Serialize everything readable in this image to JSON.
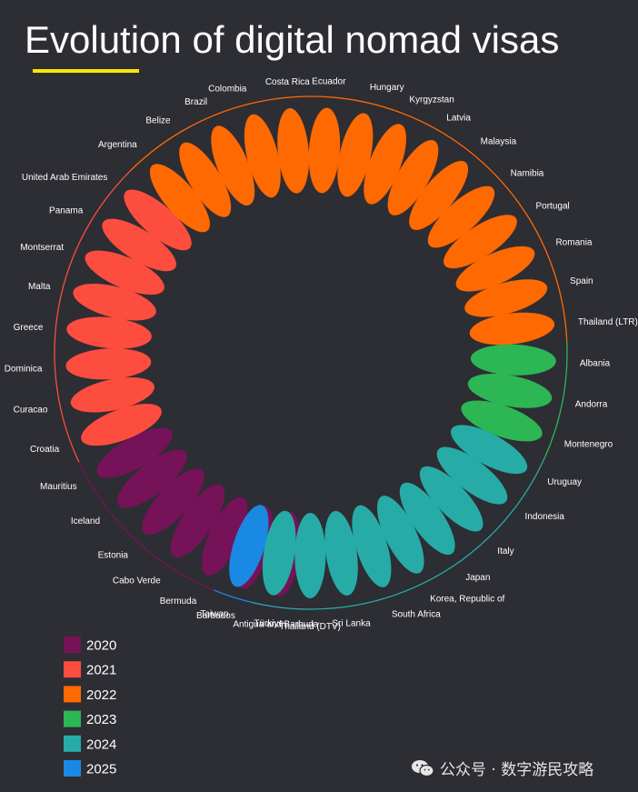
{
  "chart_data": {
    "type": "radial",
    "title": "Evolution of digital nomad visas",
    "categories": [
      "Antigua and Barbuda",
      "Barbados",
      "Bermuda",
      "Cabo Verde",
      "Estonia",
      "Iceland",
      "Mauritius",
      "Croatia",
      "Curacao",
      "Dominica",
      "Greece",
      "Malta",
      "Montserrat",
      "Panama",
      "United Arab Emirates",
      "Argentina",
      "Belize",
      "Brazil",
      "Colombia",
      "Costa Rica",
      "Ecuador",
      "Hungary",
      "Kyrgyzstan",
      "Latvia",
      "Malaysia",
      "Namibia",
      "Portugal",
      "Romania",
      "Spain",
      "Thailand (LTR)",
      "Albania",
      "Andorra",
      "Montenegro",
      "Uruguay",
      "Indonesia",
      "Italy",
      "Japan",
      "Korea, Republic of",
      "South Africa",
      "Sri Lanka",
      "Thailand (DTV)",
      "Türkiye",
      "Taiwan"
    ],
    "years": [
      2020,
      2020,
      2020,
      2020,
      2020,
      2020,
      2020,
      2021,
      2021,
      2021,
      2021,
      2021,
      2021,
      2021,
      2021,
      2022,
      2022,
      2022,
      2022,
      2022,
      2022,
      2022,
      2022,
      2022,
      2022,
      2022,
      2022,
      2022,
      2022,
      2022,
      2023,
      2023,
      2023,
      2024,
      2024,
      2024,
      2024,
      2024,
      2024,
      2024,
      2024,
      2024,
      2025
    ],
    "legend": [
      {
        "name": "2020",
        "color": "#751258"
      },
      {
        "name": "2021",
        "color": "#fd4d3e"
      },
      {
        "name": "2022",
        "color": "#fe6902"
      },
      {
        "name": "2023",
        "color": "#2db654"
      },
      {
        "name": "2024",
        "color": "#27aba7"
      },
      {
        "name": "2025",
        "color": "#1989e4"
      }
    ],
    "legend_position": "bottom-left"
  },
  "accent_color": "#ffe600",
  "watermark": {
    "icon": "wechat-icon",
    "text": "公众号 · 数字游民攻略"
  }
}
